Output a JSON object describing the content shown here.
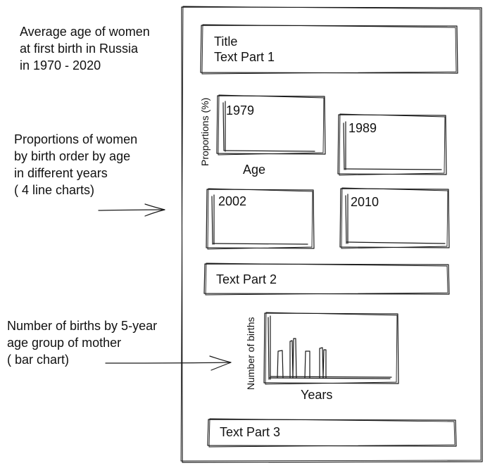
{
  "annotations": {
    "title_note": "Average age of women\nat first birth in Russia\nin 1970 - 2020",
    "line_charts_note": "Proportions of women\nby birth order by age\nin different years\n( 4 line charts)",
    "bar_chart_note": "Number of births by 5-year\nage group of mother\n( bar chart)"
  },
  "page": {
    "title_box": "Title\nText Part 1",
    "line_charts": [
      {
        "label": "1979"
      },
      {
        "label": "1989"
      },
      {
        "label": "2002"
      },
      {
        "label": "2010"
      }
    ],
    "line_axis_y": "Proportions (%)",
    "line_axis_x": "Age",
    "text_part_2": "Text Part 2",
    "bar_axis_y": "Number of births",
    "bar_axis_x": "Years",
    "text_part_3": "Text Part 3"
  }
}
